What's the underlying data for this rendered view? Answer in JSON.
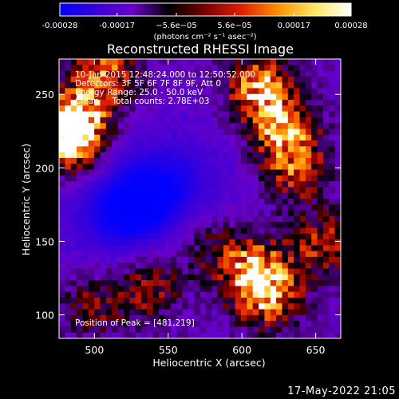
{
  "chart_data": {
    "type": "heatmap",
    "title": "Reconstructed RHESSI Image",
    "xlabel": "Heliocentric X (arcsec)",
    "ylabel": "Heliocentric Y (arcsec)",
    "xlim": [
      476,
      667
    ],
    "ylim": [
      84,
      274
    ],
    "xticks": [
      500,
      550,
      600,
      650
    ],
    "yticks": [
      100,
      150,
      200,
      250
    ],
    "colorbar": {
      "range": [
        -0.00028,
        0.00028
      ],
      "tick_values": [
        -0.00028,
        -0.00017,
        -5.6e-05,
        5.6e-05,
        0.00017,
        0.00028
      ],
      "tick_labels": [
        "-0.00028",
        "-0.00017",
        "−5.6e−05",
        "5.6e−05",
        "0.00017",
        "0.00028"
      ],
      "unit": "(photons cm⁻² s⁻¹ asec⁻²)",
      "colors": [
        "#0000ff",
        "#3a00d8",
        "#6a00c8",
        "#000000",
        "#7a0000",
        "#e02000",
        "#ff9000",
        "#ffe860",
        "#ffffff"
      ]
    },
    "annotations": {
      "time_range": "10-Jan-2015 12:48:24.000 to 12:50:52.000",
      "detectors": "Detectors: 3F 5F 6F 7F 8F 9F, Att 0",
      "energy_range": "Energy Range: 25.0 - 50.0 keV",
      "clean_counts": "Clean     Total counts: 2.78E+03",
      "peak": "Position of Peak = [481,219]"
    },
    "hotspots": [
      {
        "x": 481,
        "y": 219,
        "strength": 1.0
      },
      {
        "x": 487,
        "y": 232,
        "strength": 0.85
      },
      {
        "x": 508,
        "y": 265,
        "strength": 0.7
      },
      {
        "x": 612,
        "y": 254,
        "strength": 0.85
      },
      {
        "x": 628,
        "y": 225,
        "strength": 0.75
      },
      {
        "x": 637,
        "y": 198,
        "strength": 0.55
      },
      {
        "x": 608,
        "y": 130,
        "strength": 0.8
      },
      {
        "x": 618,
        "y": 113,
        "strength": 0.7
      },
      {
        "x": 538,
        "y": 120,
        "strength": 0.55
      },
      {
        "x": 500,
        "y": 108,
        "strength": 0.45
      },
      {
        "x": 655,
        "y": 148,
        "strength": 0.55
      },
      {
        "x": 578,
        "y": 148,
        "strength": 0.4
      }
    ],
    "coldspots": [
      {
        "x": 520,
        "y": 170,
        "strength": 1.0
      },
      {
        "x": 560,
        "y": 190,
        "strength": 0.6
      }
    ]
  },
  "footer": {
    "timestamp": "17-May-2022 21:05"
  }
}
